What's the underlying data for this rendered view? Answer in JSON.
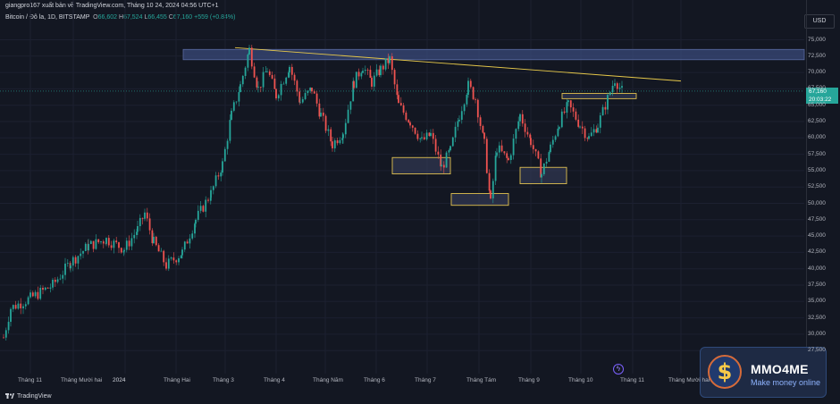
{
  "header": {
    "publish_text": "giangpro167 xuất bản về TradingView.com, Tháng 10 24, 2024 04:56 UTC+1",
    "symbol": "Bitcoin / Đô la, 1D, BITSTAMP",
    "ohlc": {
      "o_label": "O",
      "o_value": "66,602",
      "h_label": "H",
      "h_value": "67,524",
      "l_label": "L",
      "l_value": "66,455",
      "c_label": "C",
      "c_value": "67,160",
      "change": "+559 (+0.84%)"
    }
  },
  "currency": "USD",
  "last_price": {
    "price": "67,160",
    "countdown": "20:03:22"
  },
  "footer": {
    "brand": "TradingView",
    "badge_title": "MMO4ME",
    "badge_subtitle": "Make money online",
    "badge_icon": "dollar-coin-icon",
    "bolt_icon": "lightning-icon"
  },
  "colors": {
    "up": "#26a69a",
    "down": "#ef5350",
    "background": "#131722",
    "zone_fill": "#3a4a7a",
    "zone_border": "#e0c050",
    "trendline": "#e6c84a"
  },
  "chart_data": {
    "type": "candlestick",
    "title": "Bitcoin / Đô la, 1D, BITSTAMP",
    "y_ticks": [
      "75,000",
      "72,500",
      "70,000",
      "67,500",
      "65,000",
      "62,500",
      "60,000",
      "57,500",
      "55,000",
      "52,500",
      "50,000",
      "47,500",
      "45,000",
      "42,500",
      "40,000",
      "37,500",
      "35,000",
      "32,500",
      "30,000",
      "27,500"
    ],
    "ylim": [
      26000,
      76500
    ],
    "x_ticks": [
      "Tháng 11",
      "Tháng Mười hai",
      "2024",
      "Tháng Hai",
      "Tháng 3",
      "Tháng 4",
      "Tháng Năm",
      "Tháng 6",
      "Tháng 7",
      "Tháng Tám",
      "Tháng 9",
      "Tháng 10",
      "Tháng 11",
      "Tháng Mười hai"
    ],
    "price_path": [
      [
        0,
        29500
      ],
      [
        8,
        34000
      ],
      [
        30,
        35500
      ],
      [
        55,
        37500
      ],
      [
        75,
        41000
      ],
      [
        95,
        43500
      ],
      [
        115,
        44500
      ],
      [
        135,
        43000
      ],
      [
        150,
        46000
      ],
      [
        158,
        48500
      ],
      [
        168,
        44000
      ],
      [
        182,
        40500
      ],
      [
        200,
        42500
      ],
      [
        215,
        47500
      ],
      [
        232,
        51500
      ],
      [
        245,
        56000
      ],
      [
        255,
        63500
      ],
      [
        265,
        68000
      ],
      [
        275,
        73500
      ],
      [
        285,
        67500
      ],
      [
        295,
        70500
      ],
      [
        305,
        66500
      ],
      [
        320,
        71000
      ],
      [
        332,
        65500
      ],
      [
        345,
        67500
      ],
      [
        355,
        63500
      ],
      [
        368,
        59000
      ],
      [
        380,
        61000
      ],
      [
        392,
        68500
      ],
      [
        402,
        71000
      ],
      [
        412,
        68500
      ],
      [
        422,
        70500
      ],
      [
        432,
        72000
      ],
      [
        442,
        65000
      ],
      [
        455,
        62500
      ],
      [
        468,
        59500
      ],
      [
        478,
        60500
      ],
      [
        490,
        55500
      ],
      [
        500,
        58000
      ],
      [
        510,
        63500
      ],
      [
        520,
        68000
      ],
      [
        528,
        66000
      ],
      [
        538,
        59000
      ],
      [
        545,
        50000
      ],
      [
        552,
        58500
      ],
      [
        565,
        56500
      ],
      [
        578,
        63500
      ],
      [
        590,
        59500
      ],
      [
        602,
        54500
      ],
      [
        612,
        58500
      ],
      [
        622,
        62500
      ],
      [
        632,
        65000
      ],
      [
        645,
        62000
      ],
      [
        655,
        60000
      ],
      [
        665,
        62000
      ],
      [
        676,
        66000
      ],
      [
        684,
        69000
      ],
      [
        692,
        67160
      ]
    ],
    "annotations": {
      "resistance_zone": {
        "y_from": 72500,
        "y_to": 73800
      },
      "trendline": {
        "from": [
          "Tháng 3",
          73800
        ],
        "to": [
          "Tháng 11",
          68700
        ]
      },
      "demand_zones": [
        {
          "y_from": 54500,
          "y_to": 57000
        },
        {
          "y_from": 49700,
          "y_to": 51500
        },
        {
          "y_from": 53000,
          "y_to": 55500
        },
        {
          "y_from": 66000,
          "y_to": 66800
        }
      ]
    }
  }
}
